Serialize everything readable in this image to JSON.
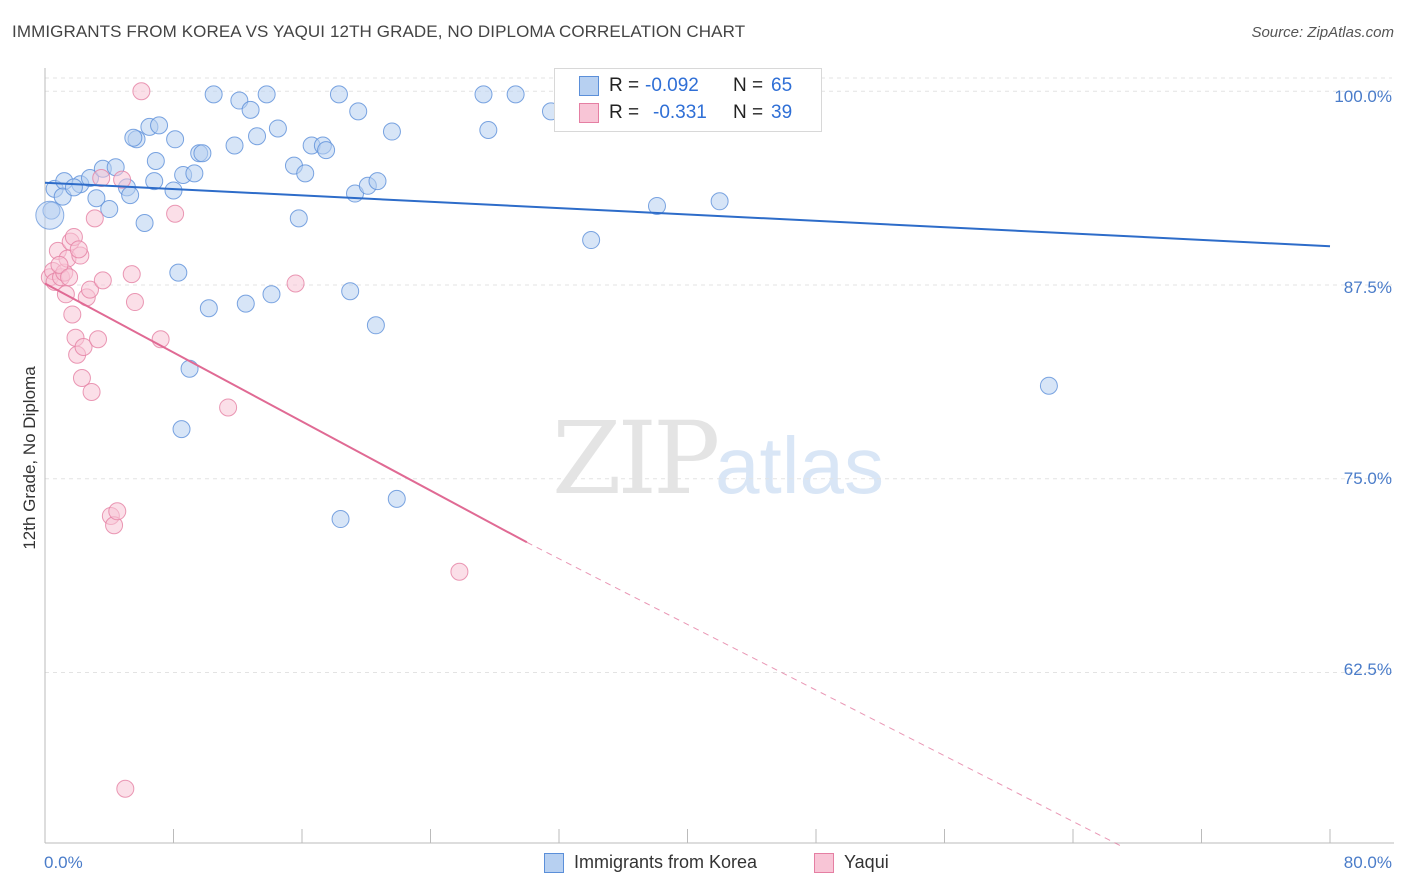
{
  "header": {
    "title": "IMMIGRANTS FROM KOREA VS YAQUI 12TH GRADE, NO DIPLOMA CORRELATION CHART",
    "source": "Source: ZipAtlas.com"
  },
  "watermark": {
    "zip": "ZIP",
    "atlas": "atlas"
  },
  "legend": {
    "rows": [
      {
        "r_label": "R =",
        "r_value": "-0.092",
        "n_label": "N =",
        "n_value": "65"
      },
      {
        "r_label": "R =",
        "r_value": "-0.331",
        "n_label": "N =",
        "n_value": "39"
      }
    ],
    "bottom": [
      "Immigrants from Korea",
      "Yaqui"
    ]
  },
  "colors": {
    "korea_fill": "#b7d0f1",
    "korea_stroke": "#5b8fd9",
    "korea_line": "#2d6cc9",
    "yaqui_fill": "#f8c5d6",
    "yaqui_stroke": "#e57fa3",
    "yaqui_line": "#e06a94",
    "tick_text": "#4a7cc9",
    "grid": "#e3e3e3"
  },
  "chart_data": {
    "type": "scatter",
    "title": "IMMIGRANTS FROM KOREA VS YAQUI 12TH GRADE, NO DIPLOMA CORRELATION CHART",
    "xlabel": "",
    "ylabel": "12th Grade, No Diploma",
    "xlim": [
      0,
      80
    ],
    "ylim": [
      51.5,
      101.5
    ],
    "x_tick_labels": [
      "0.0%",
      "80.0%"
    ],
    "y_ticks": [
      100.0,
      87.5,
      75.0,
      62.5
    ],
    "y_tick_labels": [
      "100.0%",
      "87.5%",
      "75.0%",
      "62.5%"
    ],
    "grid": true,
    "series": [
      {
        "name": "Immigrants from Korea",
        "r": -0.092,
        "n": 65,
        "trend": {
          "x": [
            0,
            80
          ],
          "y": [
            94.1,
            90.0
          ]
        },
        "points": [
          [
            0.4,
            92.3
          ],
          [
            0.6,
            93.7
          ],
          [
            1.2,
            94.2
          ],
          [
            1.1,
            93.2
          ],
          [
            2.2,
            94.0
          ],
          [
            1.8,
            93.8
          ],
          [
            2.8,
            94.4
          ],
          [
            3.2,
            93.1
          ],
          [
            3.6,
            95.0
          ],
          [
            4.4,
            95.1
          ],
          [
            5.1,
            93.8
          ],
          [
            5.3,
            93.3
          ],
          [
            4.0,
            92.4
          ],
          [
            5.7,
            96.9
          ],
          [
            5.5,
            97.0
          ],
          [
            6.2,
            91.5
          ],
          [
            6.5,
            97.7
          ],
          [
            6.8,
            94.2
          ],
          [
            6.9,
            95.5
          ],
          [
            7.1,
            97.8
          ],
          [
            8.0,
            93.6
          ],
          [
            8.1,
            96.9
          ],
          [
            8.3,
            88.3
          ],
          [
            8.6,
            94.6
          ],
          [
            9.3,
            94.7
          ],
          [
            9.6,
            96.0
          ],
          [
            9.8,
            96.0
          ],
          [
            10.5,
            99.8
          ],
          [
            10.2,
            86.0
          ],
          [
            11.8,
            96.5
          ],
          [
            12.1,
            99.4
          ],
          [
            12.5,
            86.3
          ],
          [
            12.8,
            98.8
          ],
          [
            13.2,
            97.1
          ],
          [
            13.8,
            99.8
          ],
          [
            14.1,
            86.9
          ],
          [
            14.5,
            97.6
          ],
          [
            15.5,
            95.2
          ],
          [
            15.8,
            91.8
          ],
          [
            16.2,
            94.7
          ],
          [
            16.6,
            96.5
          ],
          [
            17.3,
            96.5
          ],
          [
            17.5,
            96.2
          ],
          [
            18.3,
            99.8
          ],
          [
            19.0,
            87.1
          ],
          [
            19.3,
            93.4
          ],
          [
            19.5,
            98.7
          ],
          [
            20.1,
            93.9
          ],
          [
            20.6,
            84.9
          ],
          [
            20.7,
            94.2
          ],
          [
            21.6,
            97.4
          ],
          [
            21.9,
            73.7
          ],
          [
            27.3,
            99.8
          ],
          [
            27.6,
            97.5
          ],
          [
            29.3,
            99.8
          ],
          [
            31.5,
            98.7
          ],
          [
            34.0,
            90.4
          ],
          [
            35.1,
            98.8
          ],
          [
            37.3,
            99.4
          ],
          [
            38.1,
            92.6
          ],
          [
            42.0,
            92.9
          ],
          [
            9.0,
            82.1
          ],
          [
            18.4,
            72.4
          ],
          [
            62.5,
            81.0
          ],
          [
            8.5,
            78.2
          ]
        ]
      },
      {
        "name": "Yaqui",
        "r": -0.331,
        "n": 39,
        "trend": {
          "x": [
            0,
            30
          ],
          "y": [
            87.6,
            70.9
          ]
        },
        "trend_dashed": {
          "x": [
            30,
            67
          ],
          "y": [
            70.9,
            51.3
          ]
        },
        "points": [
          [
            0.3,
            88.0
          ],
          [
            0.5,
            88.4
          ],
          [
            0.6,
            87.7
          ],
          [
            0.8,
            89.7
          ],
          [
            1.0,
            88.0
          ],
          [
            1.2,
            88.3
          ],
          [
            1.4,
            89.2
          ],
          [
            1.6,
            90.3
          ],
          [
            1.7,
            85.6
          ],
          [
            1.8,
            90.6
          ],
          [
            1.9,
            84.1
          ],
          [
            2.0,
            83.0
          ],
          [
            2.2,
            89.4
          ],
          [
            2.3,
            81.5
          ],
          [
            2.4,
            83.5
          ],
          [
            2.6,
            86.7
          ],
          [
            2.8,
            87.2
          ],
          [
            2.9,
            80.6
          ],
          [
            3.1,
            91.8
          ],
          [
            3.3,
            84.0
          ],
          [
            3.5,
            94.4
          ],
          [
            3.6,
            87.8
          ],
          [
            4.1,
            72.6
          ],
          [
            4.3,
            72.0
          ],
          [
            4.5,
            72.9
          ],
          [
            4.8,
            94.3
          ],
          [
            5.0,
            55.0
          ],
          [
            5.4,
            88.2
          ],
          [
            5.6,
            86.4
          ],
          [
            6.0,
            100.0
          ],
          [
            7.2,
            84.0
          ],
          [
            8.1,
            92.1
          ],
          [
            11.4,
            79.6
          ],
          [
            15.6,
            87.6
          ],
          [
            25.8,
            69.0
          ],
          [
            1.3,
            86.9
          ],
          [
            0.9,
            88.8
          ],
          [
            2.1,
            89.8
          ],
          [
            1.5,
            88.0
          ]
        ]
      }
    ]
  }
}
